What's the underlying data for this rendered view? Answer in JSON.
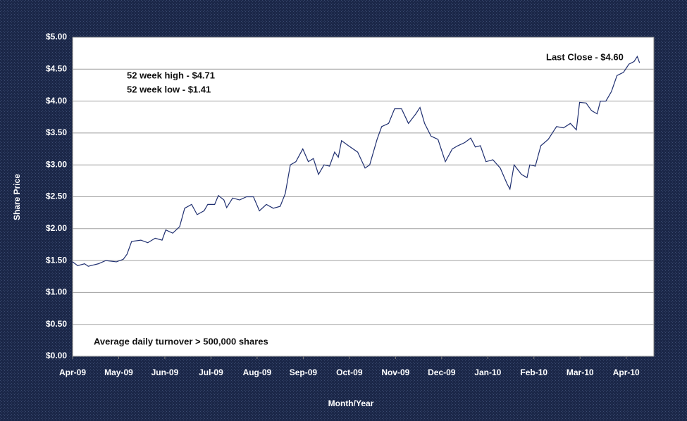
{
  "chart_data": {
    "type": "line",
    "y_label": "Share Price",
    "x_label": "Month/Year",
    "annotations": [
      "52 week high - $4.71",
      "52 week low -  $1.41",
      "Last Close - $4.60",
      "Average daily turnover > 500,000 shares"
    ],
    "color": "#1f2f70",
    "grid": true,
    "x": [
      0,
      0.11,
      0.26,
      0.34,
      0.56,
      0.72,
      0.95,
      1.1,
      1.18,
      1.28,
      1.48,
      1.63,
      1.79,
      1.94,
      2.02,
      2.17,
      2.32,
      2.43,
      2.58,
      2.7,
      2.85,
      2.93,
      3.08,
      3.16,
      3.28,
      3.34,
      3.47,
      3.62,
      3.77,
      3.92,
      4.05,
      4.2,
      4.35,
      4.5,
      4.61,
      4.72,
      4.84,
      4.99,
      5.11,
      5.22,
      5.33,
      5.45,
      5.57,
      5.68,
      5.76,
      5.83,
      5.98,
      6.18,
      6.34,
      6.44,
      6.6,
      6.7,
      6.85,
      6.98,
      7.13,
      7.28,
      7.44,
      7.53,
      7.63,
      7.77,
      7.92,
      8.08,
      8.23,
      8.35,
      8.5,
      8.63,
      8.73,
      8.84,
      8.96,
      9.11,
      9.27,
      9.42,
      9.48,
      9.57,
      9.73,
      9.85,
      9.91,
      10.03,
      10.15,
      10.31,
      10.49,
      10.64,
      10.79,
      10.92,
      10.99,
      11.13,
      11.25,
      11.37,
      11.44,
      11.56,
      11.68,
      11.8,
      11.94,
      12.06,
      12.17,
      12.24,
      12.29
    ],
    "values": [
      1.48,
      1.42,
      1.45,
      1.41,
      1.45,
      1.5,
      1.48,
      1.52,
      1.6,
      1.8,
      1.82,
      1.78,
      1.85,
      1.82,
      1.98,
      1.93,
      2.03,
      2.32,
      2.38,
      2.22,
      2.28,
      2.38,
      2.38,
      2.52,
      2.45,
      2.33,
      2.48,
      2.45,
      2.5,
      2.5,
      2.28,
      2.38,
      2.32,
      2.35,
      2.55,
      3.0,
      3.05,
      3.25,
      3.05,
      3.1,
      2.85,
      3.0,
      2.98,
      3.2,
      3.12,
      3.38,
      3.3,
      3.2,
      2.95,
      3.0,
      3.4,
      3.6,
      3.65,
      3.88,
      3.88,
      3.65,
      3.8,
      3.9,
      3.65,
      3.45,
      3.4,
      3.05,
      3.25,
      3.3,
      3.35,
      3.42,
      3.28,
      3.3,
      3.05,
      3.08,
      2.95,
      2.7,
      2.62,
      3.0,
      2.85,
      2.8,
      3.0,
      2.98,
      3.3,
      3.4,
      3.6,
      3.58,
      3.65,
      3.55,
      3.98,
      3.97,
      3.85,
      3.8,
      4.0,
      4.0,
      4.15,
      4.4,
      4.45,
      4.58,
      4.62,
      4.7,
      4.6
    ],
    "xlim": [
      0,
      12.6
    ],
    "xticks": [
      {
        "value": 0,
        "label": "Apr-09"
      },
      {
        "value": 1,
        "label": "May-09"
      },
      {
        "value": 2,
        "label": "Jun-09"
      },
      {
        "value": 3,
        "label": "Jul-09"
      },
      {
        "value": 4,
        "label": "Aug-09"
      },
      {
        "value": 5,
        "label": "Sep-09"
      },
      {
        "value": 6,
        "label": "Oct-09"
      },
      {
        "value": 7,
        "label": "Nov-09"
      },
      {
        "value": 8,
        "label": "Dec-09"
      },
      {
        "value": 9,
        "label": "Jan-10"
      },
      {
        "value": 10,
        "label": "Feb-10"
      },
      {
        "value": 11,
        "label": "Mar-10"
      },
      {
        "value": 12,
        "label": "Apr-10"
      }
    ],
    "ylim": [
      0,
      5
    ],
    "yticks": [
      {
        "value": 0,
        "label": "$0.00"
      },
      {
        "value": 0.5,
        "label": "$0.50"
      },
      {
        "value": 1,
        "label": "$1.00"
      },
      {
        "value": 1.5,
        "label": "$1.50"
      },
      {
        "value": 2,
        "label": "$2.00"
      },
      {
        "value": 2.5,
        "label": "$2.50"
      },
      {
        "value": 3,
        "label": "$3.00"
      },
      {
        "value": 3.5,
        "label": "$3.50"
      },
      {
        "value": 4,
        "label": "$4.00"
      },
      {
        "value": 4.5,
        "label": "$4.50"
      },
      {
        "value": 5,
        "label": "$5.00"
      }
    ]
  }
}
